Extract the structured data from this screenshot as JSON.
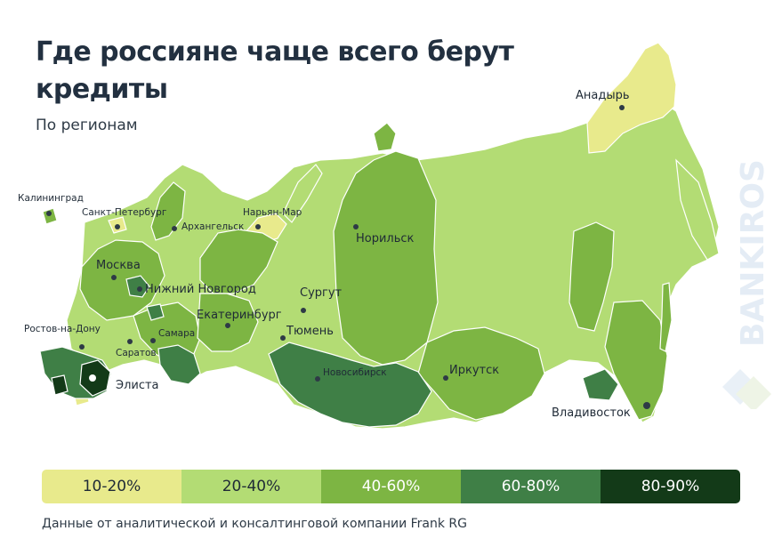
{
  "title": "Где россияне чаще всего берут кредиты",
  "subtitle": "По регионам",
  "source": "Данные от аналитической и консалтинговой компании Frank RG",
  "watermark": "BANKIROS",
  "colors": {
    "c10_20": "#e8ea8c",
    "c20_40": "#b3dc74",
    "c40_60": "#7db543",
    "c60_80": "#3f7f46",
    "c80_90": "#133a18",
    "border": "#ffffff"
  },
  "legend": [
    {
      "label": "10-20%",
      "color": "#e8ea8c",
      "text_color": "#1f2a36"
    },
    {
      "label": "20-40%",
      "color": "#b3dc74",
      "text_color": "#1f2a36"
    },
    {
      "label": "40-60%",
      "color": "#7db543",
      "text_color": "#ffffff"
    },
    {
      "label": "60-80%",
      "color": "#3f7f46",
      "text_color": "#ffffff"
    },
    {
      "label": "80-90%",
      "color": "#133a18",
      "text_color": "#ffffff"
    }
  ],
  "cities": {
    "kaliningrad": "Калининград",
    "spb": "Санкт-Петербург",
    "arkhangelsk": "Архангельск",
    "naryan_mar": "Нарьян-Мар",
    "moscow": "Москва",
    "nizhny": "Нижний Новгород",
    "ekaterinburg": "Екатеринбург",
    "samara": "Самара",
    "saratov": "Саратов",
    "rostov": "Ростов-на-Дону",
    "elista": "Элиста",
    "surgut": "Сургут",
    "tyumen": "Тюмень",
    "novosibirsk": "Новосибирск",
    "norilsk": "Норильск",
    "irkutsk": "Иркутск",
    "vladivostok": "Владивосток",
    "anadyr": "Анадырь"
  }
}
